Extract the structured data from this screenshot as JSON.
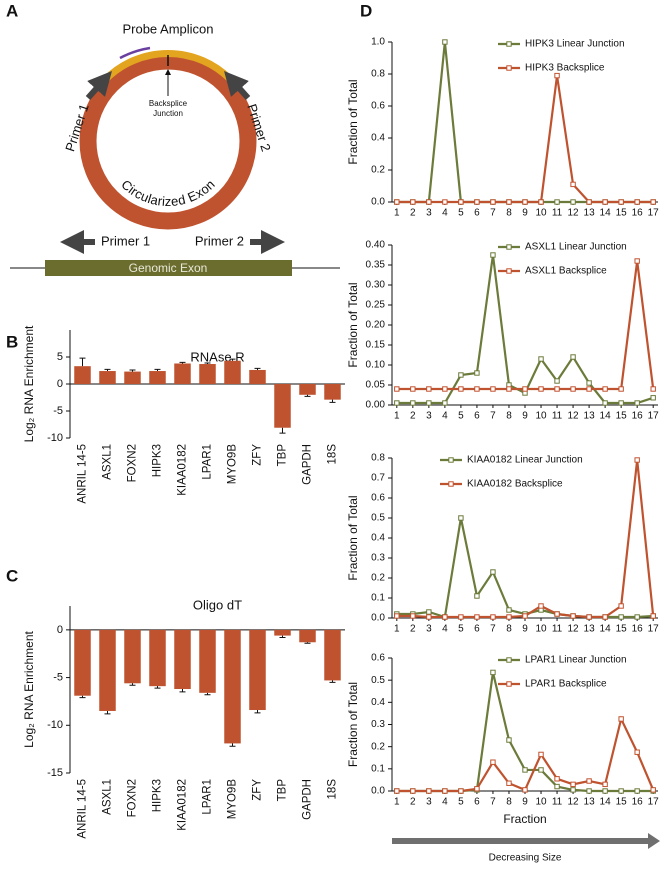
{
  "panel_labels": [
    "A",
    "B",
    "C",
    "D"
  ],
  "diagram": {
    "probe_amplicon": "Probe Amplicon",
    "primer_1": "Primer 1",
    "primer_2": "Primer 2",
    "backsplice_junction": [
      "Backsplice",
      "Junction"
    ],
    "circularized_exon": "Circularized Exon",
    "genomic_primer_1": "Primer 1",
    "genomic_primer_2": "Primer 2",
    "genomic_exon": "Genomic Exon"
  },
  "chart_data": [
    {
      "type": "bar",
      "title": "RNAse R",
      "y_label": "Log₂ RNA Enrichment",
      "categories": [
        "ANRIL 14-5",
        "ASXL1",
        "FOXN2",
        "HIPK3",
        "KIAA0182",
        "LPAR1",
        "MYO9B",
        "ZFY",
        "TBP",
        "GAPDH",
        "18S"
      ],
      "values": [
        3.3,
        2.4,
        2.3,
        2.4,
        3.8,
        3.7,
        4.3,
        2.6,
        -8.1,
        -2.0,
        -2.9
      ],
      "errors": [
        1.5,
        0.3,
        0.3,
        0.3,
        0.2,
        0.2,
        0.3,
        0.3,
        1.0,
        0.3,
        0.5
      ],
      "color": "#c0532f",
      "ylim": [
        -10,
        10
      ],
      "yticks": [
        -10,
        -5,
        0,
        5
      ]
    },
    {
      "type": "bar",
      "title": "Oligo dT",
      "y_label": "Log₂ RNA Enrichment",
      "categories": [
        "ANRIL 14-5",
        "ASXL1",
        "FOXN2",
        "HIPK3",
        "KIAA0182",
        "LPAR1",
        "MYO9B",
        "ZFY",
        "TBP",
        "GAPDH",
        "18S"
      ],
      "values": [
        -6.9,
        -8.5,
        -5.6,
        -5.9,
        -6.2,
        -6.6,
        -11.9,
        -8.4,
        -0.6,
        -1.3,
        -5.3
      ],
      "errors": [
        0.2,
        0.3,
        0.2,
        0.2,
        0.3,
        0.2,
        0.3,
        0.3,
        0.2,
        0.1,
        0.2
      ],
      "color": "#c0532f",
      "ylim": [
        -15,
        2.5
      ],
      "yticks": [
        -15,
        -10,
        -5,
        0
      ]
    },
    {
      "type": "line",
      "y_label": "Fraction of Total",
      "legend": "upper right",
      "x": [
        1,
        2,
        3,
        4,
        5,
        6,
        7,
        8,
        9,
        10,
        11,
        12,
        13,
        14,
        15,
        16,
        17
      ],
      "xlim": [
        0.7,
        17.3
      ],
      "xticks": [
        1,
        2,
        3,
        4,
        5,
        6,
        7,
        8,
        9,
        10,
        11,
        12,
        13,
        14,
        15,
        16,
        17
      ],
      "ylim": [
        0,
        1
      ],
      "yticks": [
        {
          "value": 0,
          "label": "0.0"
        },
        0.2,
        0.4,
        0.6,
        0.8,
        {
          "value": 1,
          "label": "1.0"
        }
      ],
      "series": [
        {
          "name": "HIPK3 Linear Junction",
          "color": "#6b7b3a",
          "values": [
            0,
            0,
            0,
            1,
            0,
            0,
            0,
            0,
            0,
            0,
            0,
            0,
            0,
            0,
            0,
            0,
            0
          ]
        },
        {
          "name": "HIPK3 Backsplice",
          "color": "#c0532f",
          "values": [
            0,
            0,
            0,
            0,
            0,
            0,
            0,
            0,
            0,
            0,
            0.79,
            0.11,
            0,
            0,
            0,
            0,
            0
          ]
        }
      ]
    },
    {
      "type": "line",
      "y_label": "Fraction of Total",
      "legend": "upper right",
      "x": [
        1,
        2,
        3,
        4,
        5,
        6,
        7,
        8,
        9,
        10,
        11,
        12,
        13,
        14,
        15,
        16,
        17
      ],
      "xlim": [
        0.7,
        17.3
      ],
      "xticks": [
        1,
        2,
        3,
        4,
        5,
        6,
        7,
        8,
        9,
        10,
        11,
        12,
        13,
        14,
        15,
        16,
        17
      ],
      "ylim": [
        0,
        0.4
      ],
      "yticks": [
        {
          "value": 0,
          "label": "0.00"
        },
        0.05,
        {
          "value": 0.1,
          "label": "0.10"
        },
        0.15,
        {
          "value": 0.2,
          "label": "0.20"
        },
        0.25,
        {
          "value": 0.3,
          "label": "0.30"
        },
        0.35,
        {
          "value": 0.4,
          "label": "0.40"
        }
      ],
      "series": [
        {
          "name": "ASXL1 Linear Junction",
          "color": "#6b7b3a",
          "values": [
            0.005,
            0.005,
            0.005,
            0.005,
            0.075,
            0.08,
            0.375,
            0.05,
            0.03,
            0.115,
            0.06,
            0.12,
            0.055,
            0.005,
            0.005,
            0.005,
            0.018
          ]
        },
        {
          "name": "ASXL1 Backsplice",
          "color": "#c0532f",
          "values": [
            0.04,
            0.04,
            0.04,
            0.04,
            0.04,
            0.04,
            0.04,
            0.04,
            0.04,
            0.04,
            0.04,
            0.04,
            0.04,
            0.04,
            0.04,
            0.36,
            0.04
          ]
        }
      ]
    },
    {
      "type": "line",
      "y_label": "Fraction of Total",
      "legend": "upper center",
      "x": [
        1,
        2,
        3,
        4,
        5,
        6,
        7,
        8,
        9,
        10,
        11,
        12,
        13,
        14,
        15,
        16,
        17
      ],
      "xlim": [
        0.7,
        17.3
      ],
      "xticks": [
        1,
        2,
        3,
        4,
        5,
        6,
        7,
        8,
        9,
        10,
        11,
        12,
        13,
        14,
        15,
        16,
        17
      ],
      "ylim": [
        0,
        0.8
      ],
      "yticks": [
        {
          "value": 0,
          "label": "0.0"
        },
        0.1,
        0.2,
        0.3,
        0.4,
        0.5,
        0.6,
        0.7,
        0.8
      ],
      "series": [
        {
          "name": "KIAA0182 Linear Junction",
          "color": "#6b7b3a",
          "values": [
            0.02,
            0.02,
            0.03,
            0.005,
            0.5,
            0.11,
            0.23,
            0.04,
            0.02,
            0.04,
            0.02,
            0.01,
            0.005,
            0.005,
            0.005,
            0.005,
            0.01
          ]
        },
        {
          "name": "KIAA0182 Backsplice",
          "color": "#c0532f",
          "values": [
            0.01,
            0.01,
            0.005,
            0.005,
            0.005,
            0.005,
            0.005,
            0.005,
            0.01,
            0.06,
            0.02,
            0.01,
            0.005,
            0.005,
            0.06,
            0.79,
            0.01
          ]
        }
      ]
    },
    {
      "type": "line",
      "y_label": "Fraction of Total",
      "x_label": "Fraction",
      "annotation": "Decreasing Size",
      "legend": "upper right",
      "x": [
        1,
        2,
        3,
        4,
        5,
        6,
        7,
        8,
        9,
        10,
        11,
        12,
        13,
        14,
        15,
        16,
        17
      ],
      "xlim": [
        0.7,
        17.3
      ],
      "xticks": [
        1,
        2,
        3,
        4,
        5,
        6,
        7,
        8,
        9,
        10,
        11,
        12,
        13,
        14,
        15,
        16,
        17
      ],
      "ylim": [
        0,
        0.6
      ],
      "yticks": [
        {
          "value": 0,
          "label": "0.0"
        },
        0.1,
        0.2,
        0.3,
        0.4,
        0.5,
        0.6
      ],
      "series": [
        {
          "name": "LPAR1 Linear Junction",
          "color": "#6b7b3a",
          "values": [
            0,
            0,
            0,
            0,
            0,
            0.005,
            0.535,
            0.23,
            0.095,
            0.095,
            0.02,
            0.005,
            0,
            0,
            0,
            0,
            0
          ]
        },
        {
          "name": "LPAR1 Backsplice",
          "color": "#c0532f",
          "values": [
            0,
            0,
            0,
            0,
            0,
            0.01,
            0.13,
            0.035,
            0.005,
            0.165,
            0.055,
            0.03,
            0.045,
            0.03,
            0.325,
            0.175,
            0.005
          ]
        }
      ]
    }
  ]
}
